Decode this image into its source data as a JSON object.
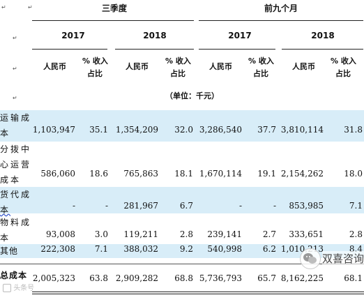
{
  "header": {
    "q3": "三季度",
    "nine_months": "前九个月",
    "years": [
      "2017",
      "2018",
      "2017",
      "2018"
    ],
    "rmb": "人民币",
    "pct_line1": "% 收入",
    "pct_line2": "占比",
    "unit": "（单位：千元）"
  },
  "rows": [
    {
      "label": [
        "运输成",
        "本"
      ],
      "bold": false,
      "wavy": false,
      "values": [
        "1,103,947",
        "35.1",
        "1,354,209",
        "32.0",
        "3,286,540",
        "37.7",
        "3,810,114",
        "31.8"
      ]
    },
    {
      "label": [
        "分拨中",
        "心运营",
        "成本"
      ],
      "bold": false,
      "wavy": false,
      "values": [
        "586,060",
        "18.6",
        "765,863",
        "18.1",
        "1,670,114",
        "19.1",
        "2,154,262",
        "18.0"
      ]
    },
    {
      "label": [
        "货代成",
        "本"
      ],
      "bold": false,
      "wavy": true,
      "values": [
        "-",
        "-",
        "281,967",
        "6.7",
        "-",
        "-",
        "853,985",
        "7.1"
      ]
    },
    {
      "label": [
        "物料成",
        "本"
      ],
      "bold": false,
      "wavy": false,
      "values": [
        "93,008",
        "3.0",
        "119,211",
        "2.8",
        "239,141",
        "2.7",
        "333,651",
        "2.8"
      ]
    },
    {
      "label": [
        "其他"
      ],
      "bold": false,
      "wavy": false,
      "values": [
        "222,308",
        "7.1",
        "388,032",
        "9.2",
        "540,998",
        "6.2",
        "1,010,213",
        "8.4"
      ]
    },
    {
      "label": [
        "总成本"
      ],
      "bold": true,
      "wavy": false,
      "values": [
        "2,005,323",
        "63.8",
        "2,909,282",
        "68.8",
        "5,736,793",
        "65.7",
        "8,162,225",
        "68.1"
      ]
    }
  ],
  "watermark": {
    "brand": "双喜咨询",
    "source": "头条号"
  },
  "colors": {
    "band": "#d8edf8",
    "text": "#111111"
  }
}
